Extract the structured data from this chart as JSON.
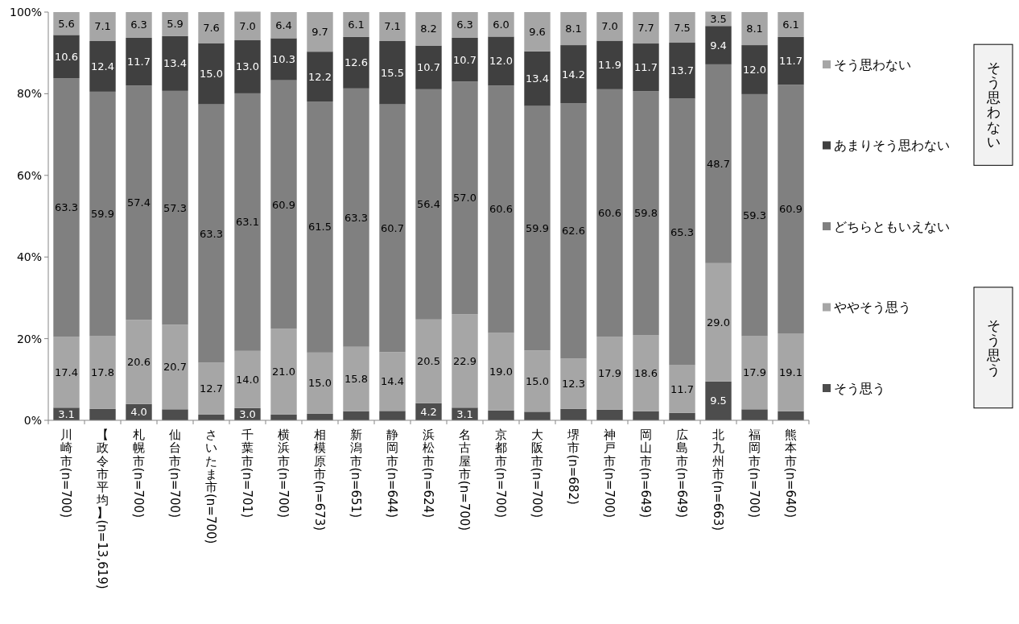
{
  "chart_data": {
    "type": "bar",
    "stacked": true,
    "legend": "right",
    "ylim": [
      0,
      100
    ],
    "yticks": [
      {
        "value": 0,
        "label": "0%"
      },
      {
        "value": 20,
        "label": "20%"
      },
      {
        "value": 40,
        "label": "40%"
      },
      {
        "value": 60,
        "label": "60%"
      },
      {
        "value": 80,
        "label": "80%"
      },
      {
        "value": 100,
        "label": "100%"
      }
    ],
    "categories": [
      "川崎市(n=700)",
      "【政令市平均】(n=13,619)",
      "札幌市(n=700)",
      "仙台市(n=700)",
      "さいたま市(n=700)",
      "千葉市(n=701)",
      "横浜市(n=700)",
      "相模原市(n=673)",
      "新潟市(n=651)",
      "静岡市(n=644)",
      "浜松市(n=624)",
      "名古屋市(n=700)",
      "京都市(n=700)",
      "大阪市(n=700)",
      "堺市(n=682)",
      "神戸市(n=700)",
      "岡山市(n=649)",
      "広島市(n=649)",
      "北九州市(n=663)",
      "福岡市(n=700)",
      "熊本市(n=640)"
    ],
    "series": [
      {
        "name": "そう思う",
        "color": "#4d4d4d",
        "values": [
          3.1,
          2.8,
          4.0,
          2.7,
          1.4,
          3.0,
          1.4,
          1.6,
          2.2,
          2.3,
          4.2,
          3.1,
          2.4,
          2.1,
          2.8,
          2.6,
          2.2,
          1.8,
          9.5,
          2.7,
          2.2
        ],
        "value_labels": [
          "3.1",
          null,
          "4.0",
          null,
          null,
          "3.0",
          null,
          null,
          null,
          null,
          "4.2",
          "3.1",
          null,
          null,
          null,
          null,
          null,
          null,
          "9.5",
          null,
          null
        ]
      },
      {
        "name": "ややそう思う",
        "color": "#a6a6a6",
        "values": [
          17.4,
          17.8,
          20.6,
          20.7,
          12.7,
          14.0,
          21.0,
          15.0,
          15.8,
          14.4,
          20.5,
          22.9,
          19.0,
          15.0,
          12.3,
          17.9,
          18.6,
          11.7,
          29.0,
          17.9,
          19.1
        ],
        "value_labels": [
          "17.4",
          "17.8",
          "20.6",
          "20.7",
          "12.7",
          "14.0",
          "21.0",
          "15.0",
          "15.8",
          "14.4",
          "20.5",
          "22.9",
          "19.0",
          "15.0",
          "12.3",
          "17.9",
          "18.6",
          "11.7",
          "29.0",
          "17.9",
          "19.1"
        ]
      },
      {
        "name": "どちらともいえない",
        "color": "#808080",
        "values": [
          63.3,
          59.9,
          57.4,
          57.3,
          63.3,
          63.1,
          60.9,
          61.5,
          63.3,
          60.7,
          56.4,
          57.0,
          60.6,
          59.9,
          62.6,
          60.6,
          59.8,
          65.3,
          48.7,
          59.3,
          60.9
        ],
        "value_labels": [
          "63.3",
          "59.9",
          "57.4",
          "57.3",
          "63.3",
          "63.1",
          "60.9",
          "61.5",
          "63.3",
          "60.7",
          "56.4",
          "57.0",
          "60.6",
          "59.9",
          "62.6",
          "60.6",
          "59.8",
          "65.3",
          "48.7",
          "59.3",
          "60.9"
        ]
      },
      {
        "name": "あまりそう思わない",
        "color": "#404040",
        "values": [
          10.6,
          12.4,
          11.7,
          13.4,
          15.0,
          13.0,
          10.3,
          12.2,
          12.6,
          15.5,
          10.7,
          10.7,
          12.0,
          13.4,
          14.2,
          11.9,
          11.7,
          13.7,
          9.4,
          12.0,
          11.7
        ],
        "value_labels": [
          "10.6",
          "12.4",
          "11.7",
          "13.4",
          "15.0",
          "13.0",
          "10.3",
          "12.2",
          "12.6",
          "15.5",
          "10.7",
          "10.7",
          "12.0",
          "13.4",
          "14.2",
          "11.9",
          "11.7",
          "13.7",
          "9.4",
          "12.0",
          "11.7"
        ]
      },
      {
        "name": "そう思わない",
        "color": "#a6a6a6",
        "values": [
          5.6,
          7.1,
          6.3,
          5.9,
          7.6,
          7.0,
          6.4,
          9.7,
          6.1,
          7.1,
          8.2,
          6.3,
          6.0,
          9.6,
          8.1,
          7.0,
          7.7,
          7.5,
          3.5,
          8.1,
          6.1
        ],
        "value_labels": [
          "5.6",
          "7.1",
          "6.3",
          "5.9",
          "7.6",
          "7.0",
          "6.4",
          "9.7",
          "6.1",
          "7.1",
          "8.2",
          "6.3",
          "6.0",
          "9.6",
          "8.1",
          "7.0",
          "7.7",
          "7.5",
          "3.5",
          "8.1",
          "6.1"
        ]
      }
    ],
    "annotations": [
      "そう思わない",
      "そう思う"
    ]
  }
}
